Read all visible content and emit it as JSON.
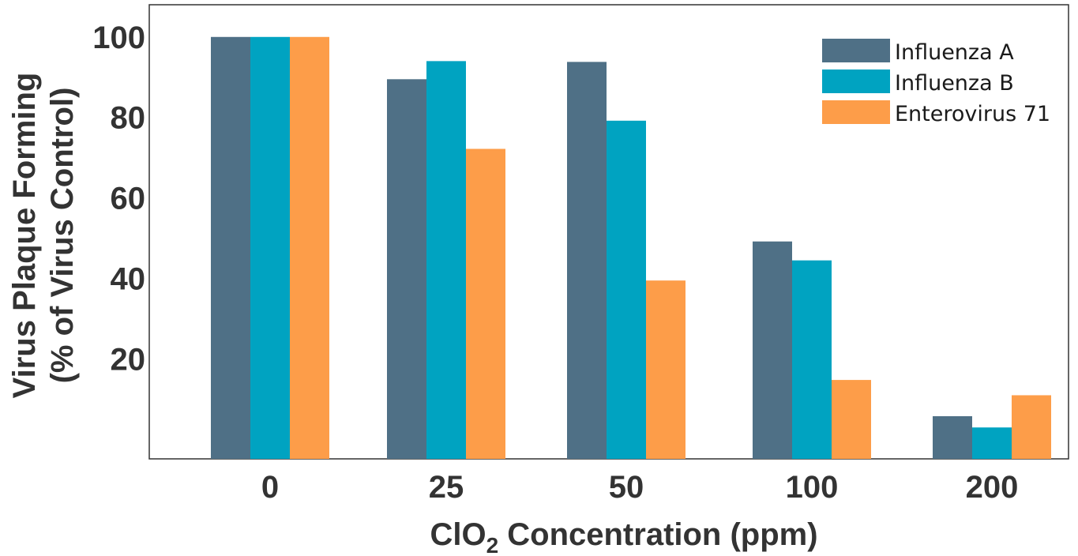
{
  "chart_data": {
    "type": "bar",
    "categories": [
      "0",
      "25",
      "50",
      "100",
      "200"
    ],
    "series": [
      {
        "name": "Influenza A",
        "color": "#4f7086",
        "values": [
          100,
          89.5,
          93.8,
          49.2,
          5.8
        ]
      },
      {
        "name": "Influenza B",
        "color": "#00a3c1",
        "values": [
          100,
          94,
          79.2,
          44.5,
          3
        ]
      },
      {
        "name": "Enterovirus 71",
        "color": "#fd9d49",
        "values": [
          100,
          72.2,
          39.5,
          14.8,
          11
        ]
      }
    ],
    "title": "",
    "xlabel": "ClO",
    "xlabel_subscript": "2",
    "xlabel_suffix": " Concentration (ppm)",
    "ylabel_line1": "Virus Plaque Forming",
    "ylabel_line2": "(% of Virus Control)",
    "yticks": [
      20,
      40,
      60,
      80,
      100
    ],
    "ylim": [
      -4.8,
      108
    ],
    "grid": false,
    "legend": "top-right"
  }
}
